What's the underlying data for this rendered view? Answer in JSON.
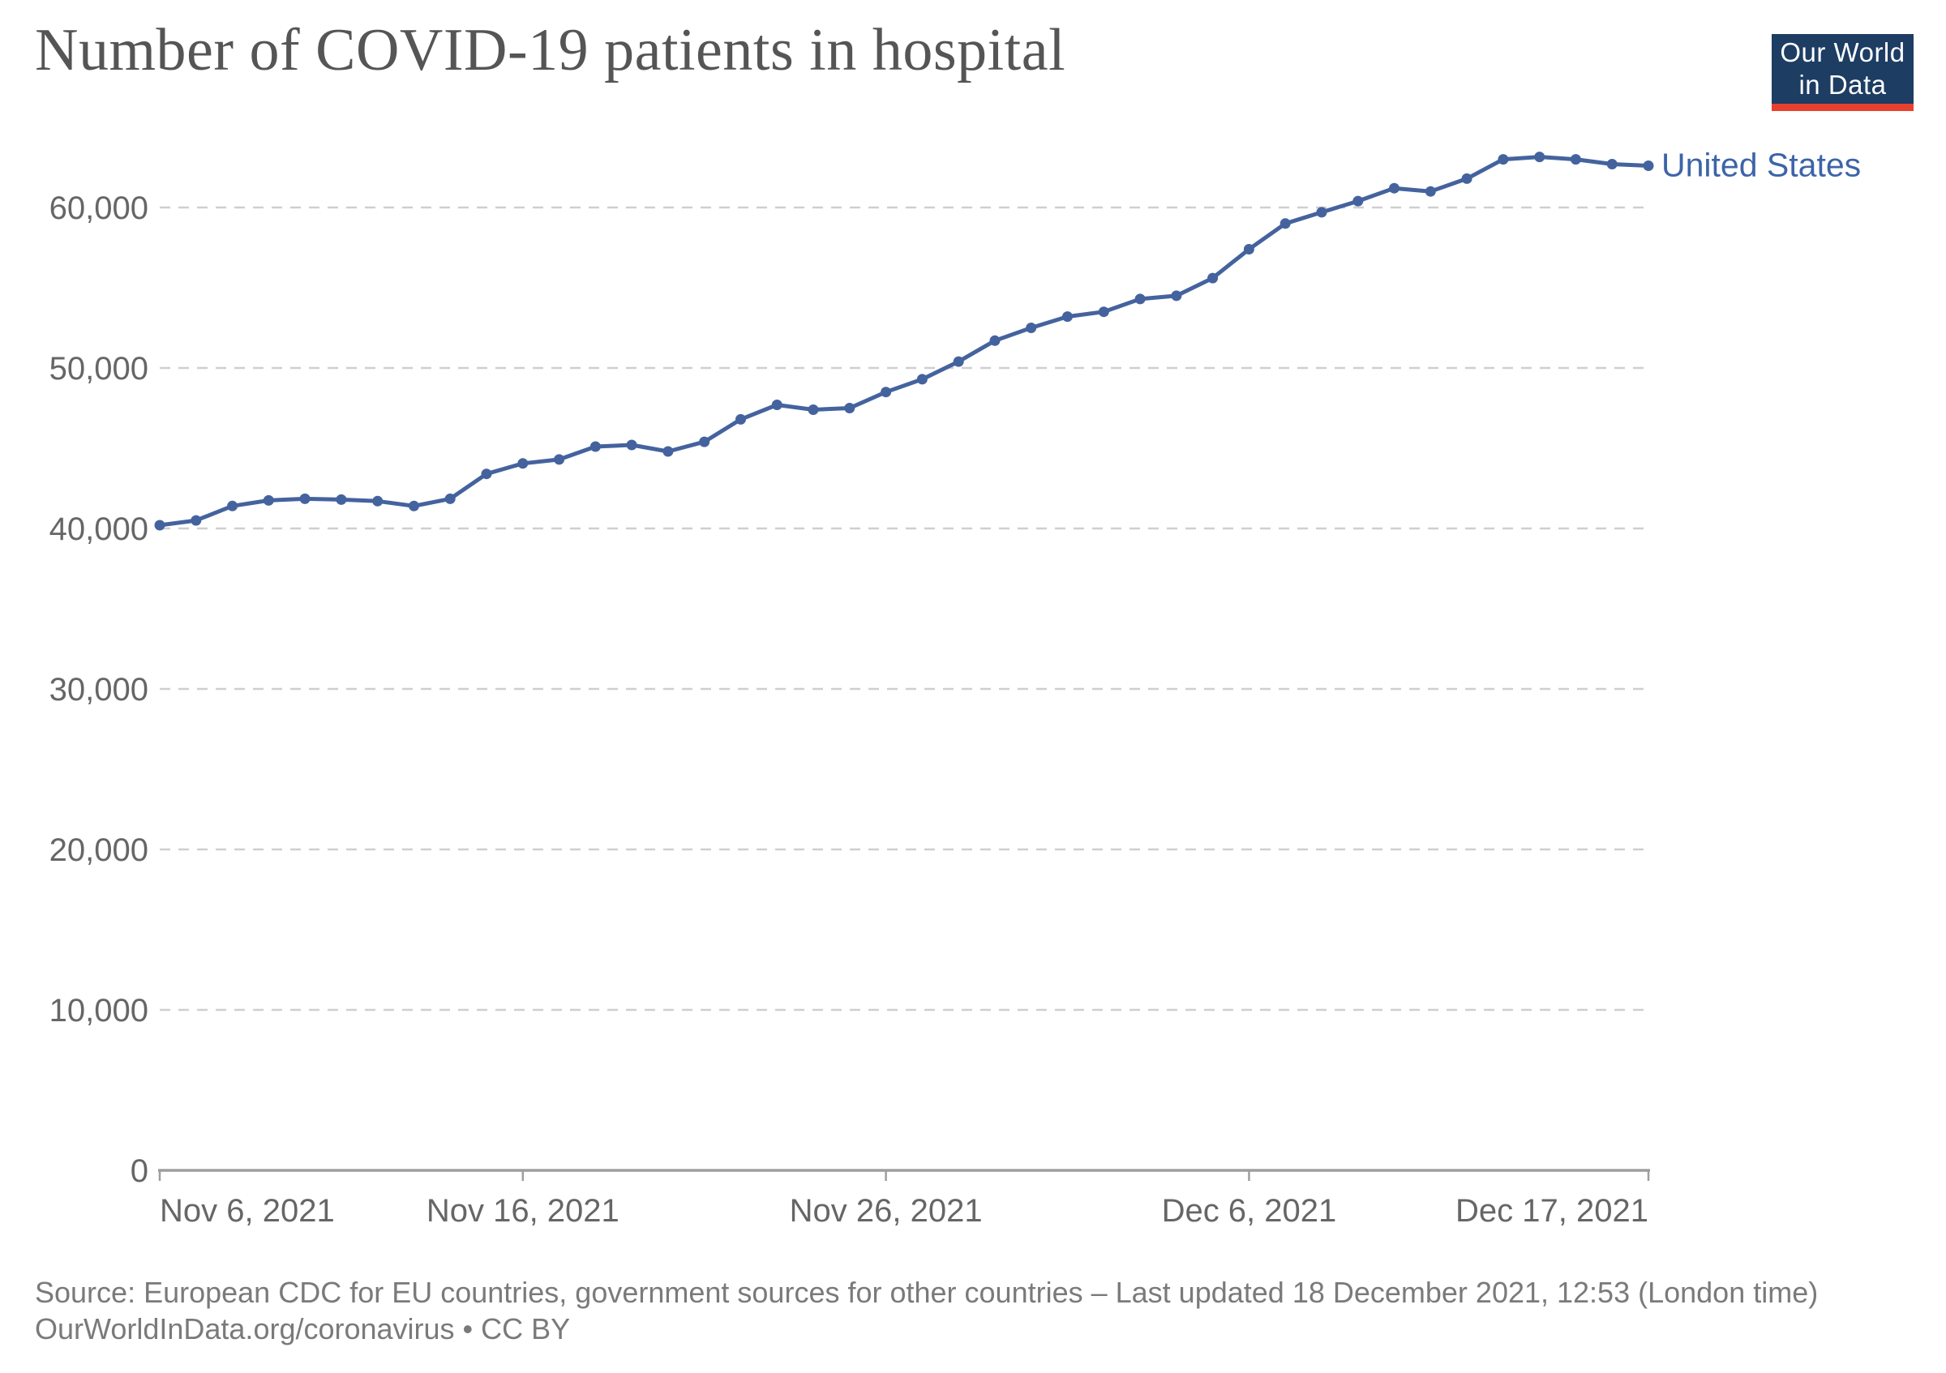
{
  "header": {
    "title": "Number of COVID-19 patients in hospital",
    "logo": {
      "line1": "Our World",
      "line2": "in Data"
    }
  },
  "legend": {
    "series_label": "United States"
  },
  "footer": {
    "line1": "Source: European CDC for EU countries, government sources for other countries – Last updated 18 December 2021, 12:53 (London time)",
    "line2": "OurWorldInData.org/coronavirus • CC BY"
  },
  "colors": {
    "line": "#44639e",
    "point": "#44639e",
    "series_label": "#3d64a8",
    "title": "#555555",
    "axis_text": "#666666",
    "footer_text": "#7a7a7a",
    "gridline": "#cfcfcf",
    "axis_line": "#9e9e9e",
    "logo_bg": "#1d3d63",
    "logo_stripe": "#e8402f"
  },
  "chart_data": {
    "type": "line",
    "title": "Number of COVID-19 patients in hospital",
    "xlabel": "",
    "ylabel": "",
    "grid": "dashed-horizontal",
    "legend_position": "end-of-line",
    "ylim": [
      0,
      65000
    ],
    "x": [
      "Nov 6, 2021",
      "Nov 7, 2021",
      "Nov 8, 2021",
      "Nov 9, 2021",
      "Nov 10, 2021",
      "Nov 11, 2021",
      "Nov 12, 2021",
      "Nov 13, 2021",
      "Nov 14, 2021",
      "Nov 15, 2021",
      "Nov 16, 2021",
      "Nov 17, 2021",
      "Nov 18, 2021",
      "Nov 19, 2021",
      "Nov 20, 2021",
      "Nov 21, 2021",
      "Nov 22, 2021",
      "Nov 23, 2021",
      "Nov 24, 2021",
      "Nov 25, 2021",
      "Nov 26, 2021",
      "Nov 27, 2021",
      "Nov 28, 2021",
      "Nov 29, 2021",
      "Nov 30, 2021",
      "Dec 1, 2021",
      "Dec 2, 2021",
      "Dec 3, 2021",
      "Dec 4, 2021",
      "Dec 5, 2021",
      "Dec 6, 2021",
      "Dec 7, 2021",
      "Dec 8, 2021",
      "Dec 9, 2021",
      "Dec 10, 2021",
      "Dec 11, 2021",
      "Dec 12, 2021",
      "Dec 13, 2021",
      "Dec 14, 2021",
      "Dec 15, 2021",
      "Dec 16, 2021",
      "Dec 17, 2021"
    ],
    "series": [
      {
        "name": "United States",
        "values": [
          40200,
          40500,
          41400,
          41750,
          41850,
          41800,
          41700,
          41400,
          41850,
          43400,
          44050,
          44300,
          45100,
          45200,
          44800,
          45400,
          46800,
          47700,
          47400,
          47500,
          48500,
          49300,
          50400,
          51700,
          52500,
          53200,
          53500,
          54300,
          54500,
          55600,
          57400,
          59000,
          59700,
          60400,
          61200,
          61000,
          61800,
          63000,
          63150,
          63000,
          62700,
          62600
        ]
      }
    ],
    "x_ticks": [
      {
        "index": 0,
        "label": "Nov 6, 2021",
        "align": "start"
      },
      {
        "index": 10,
        "label": "Nov 16, 2021",
        "align": "middle"
      },
      {
        "index": 20,
        "label": "Nov 26, 2021",
        "align": "middle"
      },
      {
        "index": 30,
        "label": "Dec 6, 2021",
        "align": "middle"
      },
      {
        "index": 41,
        "label": "Dec 17, 2021",
        "align": "end"
      }
    ],
    "y_ticks": [
      {
        "value": 0,
        "label": "0"
      },
      {
        "value": 10000,
        "label": "10,000"
      },
      {
        "value": 20000,
        "label": "20,000"
      },
      {
        "value": 30000,
        "label": "30,000"
      },
      {
        "value": 40000,
        "label": "40,000"
      },
      {
        "value": 50000,
        "label": "50,000"
      },
      {
        "value": 60000,
        "label": "60,000"
      }
    ]
  }
}
